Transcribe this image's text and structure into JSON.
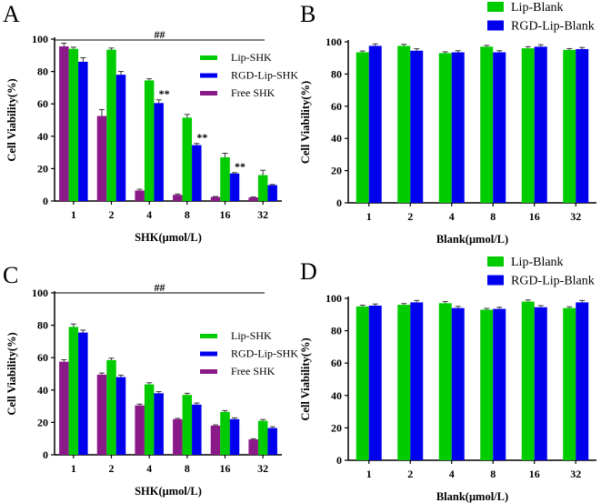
{
  "colors": {
    "lip": "#00cc00",
    "rgd": "#0000ee",
    "free": "#8b1a89",
    "error": "#333333"
  },
  "chart_data": [
    {
      "panel": "A",
      "type": "bar",
      "categories": [
        "1",
        "2",
        "4",
        "8",
        "16",
        "32"
      ],
      "xlabel": "SHK(μmol/L)",
      "ylabel": "Cell Viability(%)",
      "ylim": [
        0,
        100
      ],
      "yticks": [
        "0",
        "20",
        "40",
        "60",
        "80",
        "100"
      ],
      "legend_position": "top-right",
      "legend_style": "small",
      "significance_line_label": "##",
      "series": [
        {
          "name": "Free SHK",
          "color_key": "free",
          "values": [
            95.5,
            52.5,
            6.5,
            3.8,
            2.5,
            2.2
          ],
          "errors": [
            2.0,
            4.0,
            0.8,
            0.5,
            0.3,
            0.3
          ]
        },
        {
          "name": "Lip-SHK",
          "color_key": "lip",
          "values": [
            94.0,
            93.5,
            74.5,
            51.5,
            27.0,
            16.0
          ],
          "errors": [
            1.0,
            1.0,
            1.0,
            2.0,
            2.5,
            3.0
          ]
        },
        {
          "name": "RGD-Lip-SHK",
          "color_key": "rgd",
          "values": [
            86.0,
            78.0,
            60.5,
            34.5,
            17.0,
            9.8
          ],
          "errors": [
            2.5,
            2.0,
            2.0,
            1.0,
            0.5,
            0.4
          ]
        }
      ],
      "annotations": [
        {
          "category": "4",
          "series": "RGD-Lip-SHK",
          "text": "**"
        },
        {
          "category": "8",
          "series": "RGD-Lip-SHK",
          "text": "**"
        },
        {
          "category": "16",
          "series": "RGD-Lip-SHK",
          "text": "**"
        }
      ]
    },
    {
      "panel": "B",
      "type": "bar",
      "categories": [
        "1",
        "2",
        "4",
        "8",
        "16",
        "32"
      ],
      "xlabel": "Blank(μmol/L)",
      "ylabel": "Cell Viability(%)",
      "ylim": [
        0,
        100
      ],
      "yticks": [
        "0",
        "20",
        "40",
        "60",
        "80",
        "100"
      ],
      "legend_position": "top",
      "legend_style": "large",
      "series": [
        {
          "name": "Lip-Blank",
          "color_key": "lip",
          "values": [
            93.5,
            97.5,
            93.0,
            97.0,
            96.0,
            95.0
          ],
          "errors": [
            0.8,
            1.0,
            0.8,
            0.8,
            1.0,
            0.8
          ]
        },
        {
          "name": "RGD-Lip-Blank",
          "color_key": "rgd",
          "values": [
            97.5,
            94.5,
            93.5,
            93.5,
            97.0,
            95.5
          ],
          "errors": [
            1.2,
            1.2,
            1.0,
            1.0,
            1.2,
            1.0
          ]
        }
      ],
      "annotations": []
    },
    {
      "panel": "C",
      "type": "bar",
      "categories": [
        "1",
        "2",
        "4",
        "8",
        "16",
        "32"
      ],
      "xlabel": "SHK(μmol/L)",
      "ylabel": "Cell Viability(%)",
      "ylim": [
        0,
        100
      ],
      "yticks": [
        "0",
        "20",
        "40",
        "60",
        "80",
        "100"
      ],
      "legend_position": "right",
      "legend_style": "small",
      "significance_line_label": "##",
      "series": [
        {
          "name": "Free SHK",
          "color_key": "free",
          "values": [
            57.5,
            49.5,
            30.5,
            22.0,
            18.0,
            9.5
          ],
          "errors": [
            1.2,
            1.0,
            0.8,
            0.5,
            0.5,
            0.4
          ]
        },
        {
          "name": "Lip-SHK",
          "color_key": "lip",
          "values": [
            79.0,
            58.5,
            43.5,
            37.0,
            26.5,
            21.0
          ],
          "errors": [
            1.8,
            1.2,
            1.0,
            1.0,
            0.8,
            0.8
          ]
        },
        {
          "name": "RGD-Lip-SHK",
          "color_key": "rgd",
          "values": [
            75.5,
            48.0,
            38.0,
            31.0,
            22.0,
            16.5
          ],
          "errors": [
            1.5,
            1.2,
            1.0,
            1.0,
            0.8,
            0.8
          ]
        }
      ],
      "annotations": []
    },
    {
      "panel": "D",
      "type": "bar",
      "categories": [
        "1",
        "2",
        "4",
        "8",
        "16",
        "32"
      ],
      "xlabel": "Blank(μmol/L)",
      "ylabel": "Cell Viability(%)",
      "ylim": [
        0,
        100
      ],
      "yticks": [
        "0",
        "20",
        "40",
        "60",
        "80",
        "100"
      ],
      "legend_position": "top",
      "legend_style": "large",
      "series": [
        {
          "name": "Lip-Blank",
          "color_key": "lip",
          "values": [
            95.0,
            96.0,
            97.0,
            93.0,
            98.0,
            94.0
          ],
          "errors": [
            0.8,
            0.8,
            1.0,
            0.8,
            1.0,
            0.8
          ]
        },
        {
          "name": "RGD-Lip-Blank",
          "color_key": "rgd",
          "values": [
            95.5,
            97.5,
            94.0,
            93.5,
            94.5,
            97.5
          ],
          "errors": [
            1.0,
            1.2,
            1.0,
            1.0,
            1.0,
            1.2
          ]
        }
      ],
      "annotations": []
    }
  ]
}
